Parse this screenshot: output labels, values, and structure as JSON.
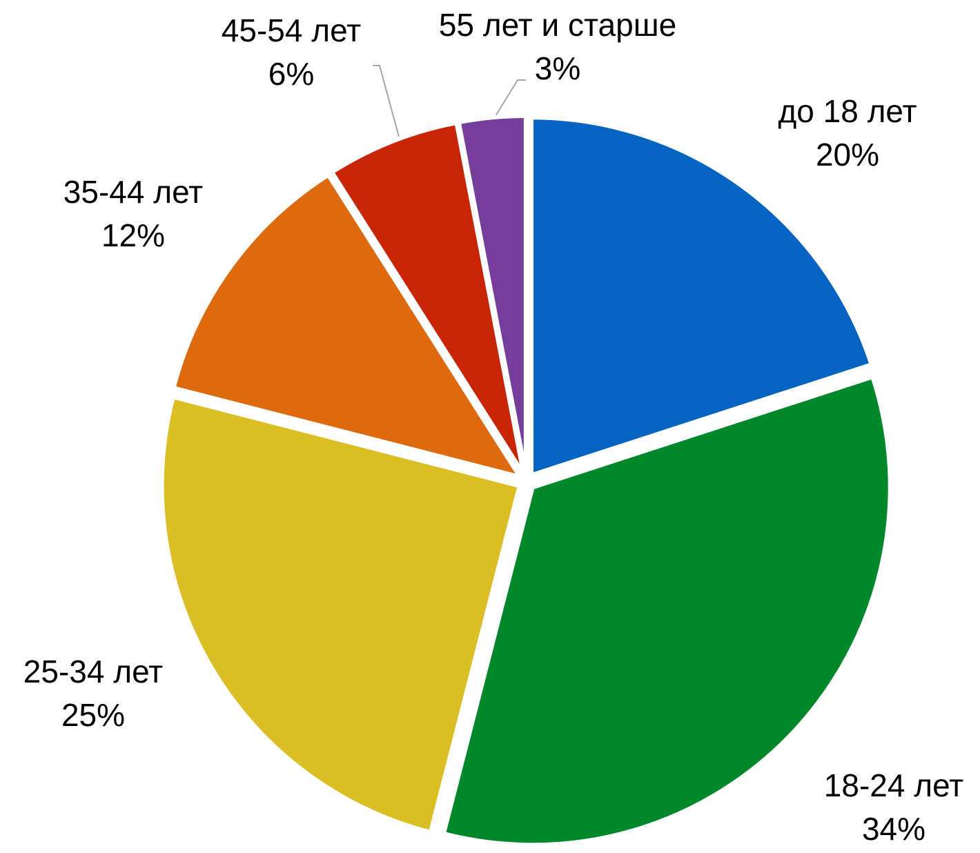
{
  "chart_data": {
    "type": "pie",
    "categories": [
      "до 18 лет",
      "18-24 лет",
      "25-34 лет",
      "35-44 лет",
      "45-54 лет",
      "55 лет и старше"
    ],
    "values": [
      20,
      34,
      25,
      12,
      6,
      3
    ],
    "value_labels": [
      "20%",
      "34%",
      "25%",
      "12%",
      "6%",
      "3%"
    ],
    "colors": [
      "#0563c1",
      "#00882b",
      "#dbbe24",
      "#de6a10",
      "#c82506",
      "#763e9b"
    ]
  }
}
